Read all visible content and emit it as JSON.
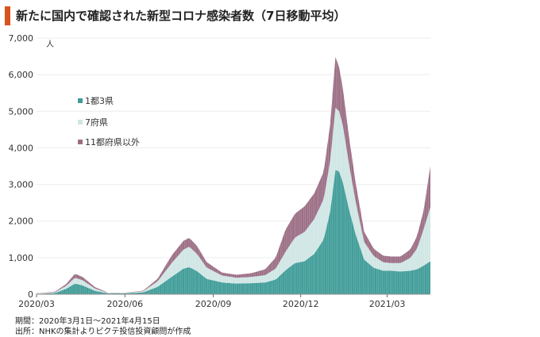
{
  "title": "新たに国内で確認された新型コロナ感染者数（7日移動平均）",
  "footer": {
    "period": "期間：2020年3月1日～2021年4月15日",
    "source": "出所：NHKの集計よりピクテ投信投資顧問が作成"
  },
  "colors": {
    "accent": "#d9531e",
    "s1": "#3f9c98",
    "s2": "#cfe6e4",
    "s3": "#9b6d84"
  },
  "chart_data": {
    "type": "area",
    "stacked": true,
    "yunit": "人",
    "ylim": [
      0,
      7000
    ],
    "yticks": [
      0,
      1000,
      2000,
      3000,
      4000,
      5000,
      6000,
      7000
    ],
    "ytick_labels": [
      "0",
      "1,000",
      "2,000",
      "3,000",
      "4,000",
      "5,000",
      "6,000",
      "7,000"
    ],
    "xtick_labels": [
      "2020/03",
      "2020/06",
      "2020/09",
      "2020/12",
      "2021/03"
    ],
    "xtick_dates": [
      "2020-03-01",
      "2020-06-01",
      "2020-09-01",
      "2020-12-01",
      "2021-03-01"
    ],
    "x_range": [
      "2020-03-01",
      "2021-04-15"
    ],
    "legend_position": "upper-left",
    "x": [
      "2020-03-01",
      "2020-03-20",
      "2020-04-01",
      "2020-04-10",
      "2020-04-18",
      "2020-05-01",
      "2020-05-15",
      "2020-06-01",
      "2020-06-20",
      "2020-07-05",
      "2020-07-20",
      "2020-08-01",
      "2020-08-07",
      "2020-08-15",
      "2020-08-25",
      "2020-09-10",
      "2020-09-25",
      "2020-10-10",
      "2020-10-25",
      "2020-11-05",
      "2020-11-15",
      "2020-11-25",
      "2020-12-05",
      "2020-12-15",
      "2020-12-25",
      "2021-01-01",
      "2021-01-06",
      "2021-01-10",
      "2021-01-14",
      "2021-01-20",
      "2021-01-27",
      "2021-02-05",
      "2021-02-15",
      "2021-02-25",
      "2021-03-05",
      "2021-03-15",
      "2021-03-25",
      "2021-04-01",
      "2021-04-08",
      "2021-04-15"
    ],
    "series": [
      {
        "name": "1都3県",
        "values": [
          10,
          30,
          150,
          290,
          240,
          90,
          20,
          25,
          50,
          200,
          480,
          700,
          740,
          630,
          420,
          320,
          290,
          300,
          320,
          400,
          650,
          850,
          900,
          1100,
          1500,
          2300,
          3400,
          3350,
          3050,
          2350,
          1650,
          950,
          720,
          640,
          640,
          620,
          640,
          680,
          780,
          900
        ]
      },
      {
        "name": "7府県",
        "values": [
          8,
          20,
          80,
          160,
          140,
          60,
          10,
          10,
          30,
          150,
          380,
          520,
          560,
          470,
          310,
          190,
          160,
          170,
          200,
          300,
          500,
          700,
          800,
          950,
          1100,
          1400,
          1700,
          1650,
          1550,
          1250,
          900,
          480,
          320,
          230,
          210,
          230,
          350,
          560,
          1000,
          1480
        ]
      },
      {
        "name": "11都府県以外",
        "values": [
          5,
          15,
          50,
          110,
          90,
          40,
          5,
          5,
          15,
          70,
          210,
          240,
          240,
          220,
          150,
          80,
          80,
          100,
          160,
          300,
          600,
          650,
          700,
          700,
          750,
          1000,
          1400,
          1200,
          1000,
          750,
          520,
          280,
          200,
          180,
          180,
          180,
          230,
          340,
          510,
          1120
        ]
      }
    ]
  }
}
